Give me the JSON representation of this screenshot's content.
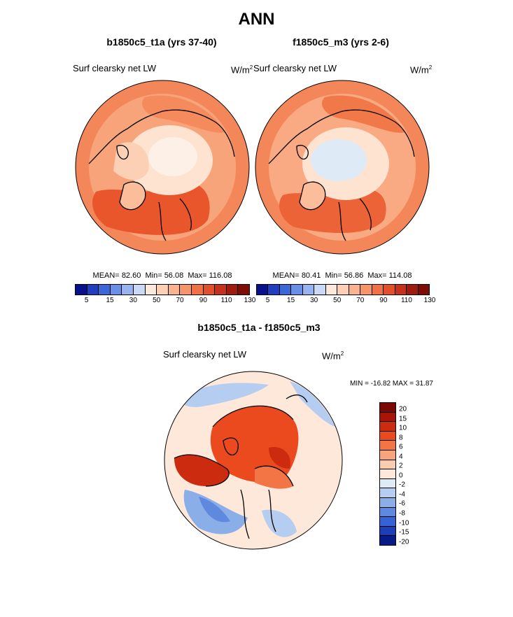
{
  "page_title": "ANN",
  "panels": [
    {
      "title": "b1850c5_t1a (yrs 37-40)",
      "variable": "Surf clearsky net LW",
      "units": "W/m",
      "units_exp": "2",
      "mean_label": "MEAN=",
      "mean": "82.60",
      "min_label": "Min=",
      "min": "56.08",
      "max_label": "Max=",
      "max": "116.08"
    },
    {
      "title": "f1850c5_m3 (yrs 2-6)",
      "variable": "Surf clearsky net LW",
      "units": "W/m",
      "units_exp": "2",
      "mean_label": "MEAN=",
      "mean": "80.41",
      "min_label": "Min=",
      "min": "56.86",
      "max_label": "Max=",
      "max": "114.08"
    }
  ],
  "diff": {
    "title": "b1850c5_t1a - f1850c5_m3",
    "variable": "Surf clearsky net LW",
    "units": "W/m",
    "units_exp": "2",
    "minmax_text": "MIN = -16.82 MAX =  31.87"
  },
  "chart_data": [
    {
      "type": "heatmap",
      "projection": "north-polar-stereographic",
      "title": "b1850c5_t1a (yrs 37-40)",
      "variable": "Surf clearsky net LW",
      "units": "W/m2",
      "stats": {
        "mean": 82.6,
        "min": 56.08,
        "max": 116.08
      },
      "colorbar_ticks": [
        "5",
        "15",
        "30",
        "50",
        "70",
        "90",
        "110",
        "130"
      ]
    },
    {
      "type": "heatmap",
      "projection": "north-polar-stereographic",
      "title": "f1850c5_m3 (yrs 2-6)",
      "variable": "Surf clearsky net LW",
      "units": "W/m2",
      "stats": {
        "mean": 80.41,
        "min": 56.86,
        "max": 114.08
      },
      "colorbar_ticks": [
        "5",
        "15",
        "30",
        "50",
        "70",
        "90",
        "110",
        "130"
      ]
    },
    {
      "type": "heatmap",
      "projection": "north-polar-stereographic",
      "title": "b1850c5_t1a - f1850c5_m3",
      "variable": "Surf clearsky net LW",
      "units": "W/m2",
      "stats": {
        "min": -16.82,
        "max": 31.87
      },
      "colorbar_ticks": [
        "20",
        "15",
        "10",
        "8",
        "6",
        "4",
        "2",
        "0",
        "-2",
        "-4",
        "-6",
        "-8",
        "-10",
        "-15",
        "-20"
      ]
    }
  ],
  "colormaps": {
    "abs": [
      "#08108c",
      "#1f3fc0",
      "#3a68d8",
      "#6990e8",
      "#97b4f0",
      "#c8daf6",
      "#fde9da",
      "#fcd0b4",
      "#fab38e",
      "#f79468",
      "#f17142",
      "#e24f28",
      "#c5311b",
      "#a11a10",
      "#7d0b06"
    ],
    "diff": [
      "#7b0804",
      "#a81408",
      "#cd2b10",
      "#ea4a1e",
      "#f37545",
      "#f8a47a",
      "#fbcdb0",
      "#fde8da",
      "#dfeaf7",
      "#b5cdf0",
      "#8aaee8",
      "#5f88df",
      "#3562d4",
      "#1c3eb8",
      "#081a88"
    ]
  }
}
